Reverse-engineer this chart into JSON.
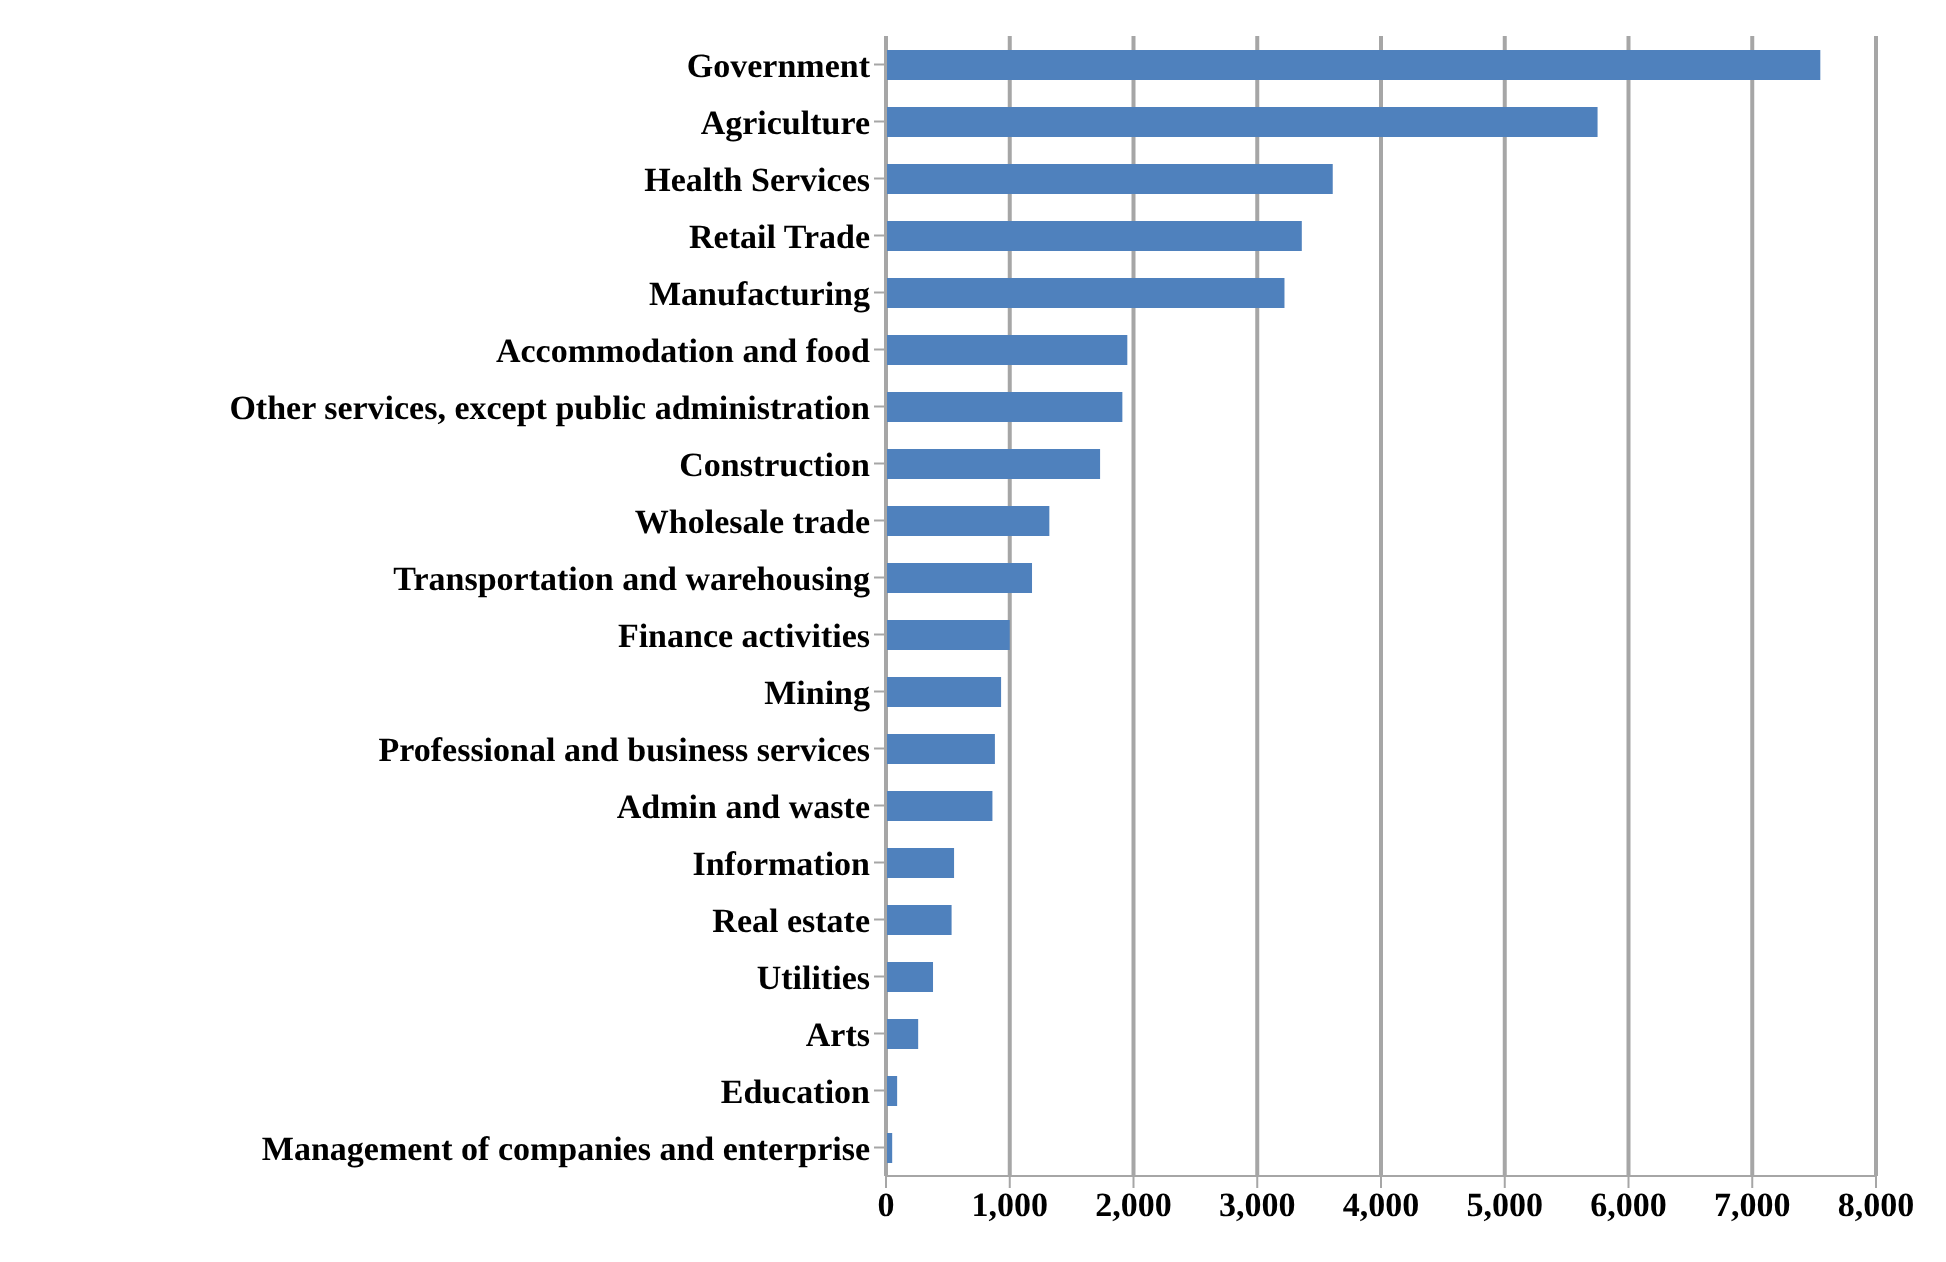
{
  "chart_data": {
    "type": "bar",
    "orientation": "horizontal",
    "categories": [
      "Government",
      "Agriculture",
      "Health Services",
      "Retail Trade",
      "Manufacturing",
      "Accommodation and food",
      "Other services, except public administration",
      "Construction",
      "Wholesale trade",
      "Transportation and warehousing",
      "Finance activities",
      "Mining",
      "Professional and business services",
      "Admin and waste",
      "Information",
      "Real estate",
      "Utilities",
      "Arts",
      "Education",
      "Management of companies and enterprise"
    ],
    "values": [
      7550,
      5750,
      3610,
      3360,
      3220,
      1950,
      1910,
      1730,
      1320,
      1180,
      1000,
      930,
      880,
      860,
      550,
      530,
      380,
      260,
      90,
      50
    ],
    "color": "#4f81bd",
    "xlim": [
      0,
      8000
    ],
    "xticks": [
      {
        "value": 0,
        "label": "0"
      },
      {
        "value": 1000,
        "label": "1,000"
      },
      {
        "value": 2000,
        "label": "2,000"
      },
      {
        "value": 3000,
        "label": "3,000"
      },
      {
        "value": 4000,
        "label": "4,000"
      },
      {
        "value": 5000,
        "label": "5,000"
      },
      {
        "value": 6000,
        "label": "6,000"
      },
      {
        "value": 7000,
        "label": "7,000"
      },
      {
        "value": 8000,
        "label": "8,000"
      }
    ],
    "grid": "x"
  }
}
